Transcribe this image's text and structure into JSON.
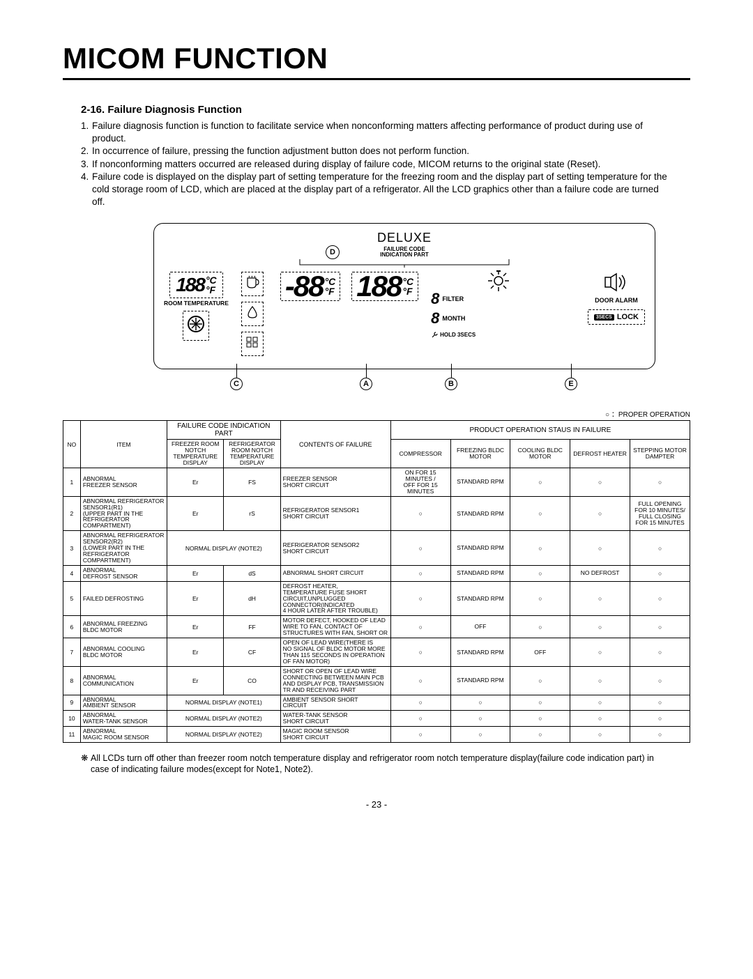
{
  "page": {
    "title": "MICOM FUNCTION",
    "section_no": "2-16.",
    "section_title": "Failure Diagnosis Function",
    "bullets": [
      "Failure diagnosis function is function to facilitate service when nonconforming matters affecting performance of product during use of product.",
      "In occurrence of failure, pressing the function adjustment button does not perform function.",
      "If nonconforming matters occurred are released during display of failure code, MICOM returns to the original state (Reset).",
      "Failure code is displayed on the display part of setting temperature for the freezing room and the display part of setting temperature for the cold storage room of LCD, which are placed at the display part of a refrigerator. All the LCD graphics other than a failure code are turned off."
    ],
    "pagenum": "- 23 -"
  },
  "lcd": {
    "deluxe": "DELUXE",
    "failure_code_label1": "FAILURE CODE",
    "failure_code_label2": "INDICATION PART",
    "room_temp": "ROOM TEMPERATURE",
    "door_alarm": "DOOR ALARM",
    "filter": "FILTER",
    "month": "MONTH",
    "hold": "HOLD 3SECS",
    "lock_badge": "3SECS",
    "lock": "LOCK",
    "letters": {
      "D": "D",
      "C": "C",
      "A": "A",
      "B": "B",
      "E": "E"
    }
  },
  "table": {
    "legend": "○ ：PROPER OPERATION",
    "headers": {
      "no": "NO",
      "item": "ITEM",
      "failure_code": "FAILURE CODE INDICATION PART",
      "fc_sub1": "FREEZER ROOM NOTCH TEMPERATURE DISPLAY",
      "fc_sub2": "REFRIGERATOR ROOM NOTCH TEMPERATURE DISPLAY",
      "contents": "CONTENTS OF FAILURE",
      "product": "PRODUCT OPERATION STAUS IN FAILURE",
      "compressor": "COMPRESSOR",
      "freezing": "FREEZING BLDC MOTOR",
      "cooling": "COOLING BLDC MOTOR",
      "defrost": "DEFROST HEATER",
      "stepping": "STEPPING MOTOR DAMPTER"
    },
    "rows": [
      {
        "no": "1",
        "item": "ABNORMAL\nFREEZER SENSOR",
        "code1": "Er",
        "code2": "FS",
        "contents": "FREEZER SENSOR\nSHORT CIRCUIT",
        "s": [
          "ON FOR 15 MINUTES /\nOFF FOR 15 MINUTES",
          "STANDARD RPM",
          "○",
          "○",
          "○"
        ]
      },
      {
        "no": "2",
        "item": "ABNORMAL REFRIGERATOR\nSENSOR1(R1)\n(UPPER PART IN THE\nREFRIGERATOR\nCOMPARTMENT)",
        "code1": "Er",
        "code2": "rS",
        "contents": "REFRIGERATOR SENSOR1\nSHORT CIRCUIT",
        "s": [
          "○",
          "STANDARD RPM",
          "○",
          "○",
          "FULL OPENING FOR 10 MINUTES/\nFULL CLOSING FOR 15 MINUTES"
        ]
      },
      {
        "no": "3",
        "item": "ABNORMAL REFRIGERATOR\nSENSOR2(R2)\n(LOWER PART IN THE\nREFRIGERATOR\nCOMPARTMENT)",
        "code_merge": "NORMAL DISPLAY (NOTE2)",
        "contents": "REFRIGERATOR SENSOR2\nSHORT CIRCUIT",
        "s": [
          "○",
          "STANDARD RPM",
          "○",
          "○",
          "○"
        ]
      },
      {
        "no": "4",
        "item": "ABNORMAL\nDEFROST SENSOR",
        "code1": "Er",
        "code2": "dS",
        "contents": "ABNORMAL SHORT CIRCUIT",
        "s": [
          "○",
          "STANDARD RPM",
          "○",
          "NO DEFROST",
          "○"
        ]
      },
      {
        "no": "5",
        "item": "FAILED DEFROSTING",
        "code1": "Er",
        "code2": "dH",
        "contents": "DEFROST HEATER,\nTEMPERATURE FUSE SHORT\nCIRCUIT,UNPLUGGED\nCONNECTOR(INDICATED\n4 HOUR LATER AFTER TROUBLE)",
        "s": [
          "○",
          "STANDARD RPM",
          "○",
          "○",
          "○"
        ]
      },
      {
        "no": "6",
        "item": "ABNORMAL FREEZING\nBLDC MOTOR",
        "code1": "Er",
        "code2": "FF",
        "contents": "MOTOR DEFECT, HOOKED OF LEAD\nWIRE TO FAN, CONTACT OF\nSTRUCTURES WITH FAN, SHORT OR",
        "s": [
          "○",
          "OFF",
          "○",
          "○",
          "○"
        ]
      },
      {
        "no": "7",
        "item": "ABNORMAL COOLING\nBLDC MOTOR",
        "code1": "Er",
        "code2": "CF",
        "contents": "OPEN  OF LEAD WIRE(THERE IS\nNO SIGNAL OF BLDC MOTOR MORE\nTHAN 115 SECONDS IN OPERATION\nOF FAN MOTOR)",
        "s": [
          "○",
          "STANDARD RPM",
          "OFF",
          "○",
          "○"
        ]
      },
      {
        "no": "8",
        "item": "ABNORMAL\nCOMMUNICATION",
        "code1": "Er",
        "code2": "CO",
        "contents": "SHORT OR OPEN OF LEAD WIRE\nCONNECTING BETWEEN  MAIN PCB\nAND DISPLAY PCB, TRANSMISSION\nTR AND RECEIVING PART",
        "s": [
          "○",
          "STANDARD RPM",
          "○",
          "○",
          "○"
        ]
      },
      {
        "no": "9",
        "item": "ABNORMAL\nAMBIENT SENSOR",
        "code_merge": "NORMAL DISPLAY (NOTE1)",
        "contents": "AMBIENT SENSOR SHORT\nCIRCUIT",
        "s": [
          "○",
          "○",
          "○",
          "○",
          "○"
        ]
      },
      {
        "no": "10",
        "item": "ABNORMAL\nWATER-TANK SENSOR",
        "code_merge": "NORMAL DISPLAY (NOTE2)",
        "contents": "WATER-TANK SENSOR\nSHORT  CIRCUIT",
        "s": [
          "○",
          "○",
          "○",
          "○",
          "○"
        ]
      },
      {
        "no": "11",
        "item": "ABNORMAL\nMAGIC ROOM SENSOR",
        "code_merge": "NORMAL DISPLAY (NOTE2)",
        "contents": "MAGIC ROOM SENSOR\nSHORT CIRCUIT",
        "s": [
          "○",
          "○",
          "○",
          "○",
          "○"
        ]
      }
    ]
  },
  "footnote": "All LCDs turn off other than freezer room notch temperature display and refrigerator room notch temperature display(failure code indication part) in case of indicating failure modes(except for Note1, Note2)."
}
